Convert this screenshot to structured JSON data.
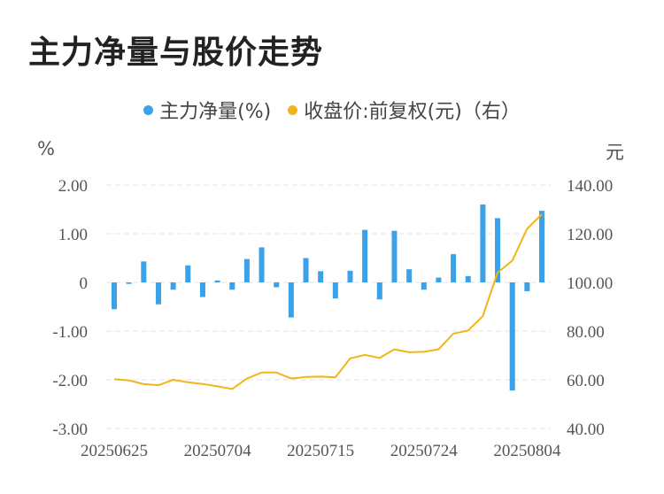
{
  "title": "主力净量与股价走势",
  "legend": {
    "series1": "主力净量(%)",
    "series2": "收盘价:前复权(元)（右）"
  },
  "units": {
    "left": "%",
    "right": "元"
  },
  "colors": {
    "bar": "#3BA1E8",
    "line": "#F2B418",
    "grid": "#E3E3E3"
  },
  "chart_data": {
    "type": "bar+line",
    "x_tick_labels": [
      "20250625",
      "20250704",
      "20250715",
      "20250724",
      "20250804"
    ],
    "left_axis": {
      "ticks": [
        "2.00",
        "1.00",
        "0",
        "-1.00",
        "-2.00",
        "-3.00"
      ],
      "min": -3,
      "max": 2
    },
    "right_axis": {
      "ticks": [
        "140.00",
        "120.00",
        "100.00",
        "80.00",
        "60.00",
        "40.00"
      ],
      "min": 40,
      "max": 140
    },
    "series": [
      {
        "name": "主力净量(%)",
        "type": "bar",
        "values": [
          -0.55,
          -0.03,
          0.43,
          -0.45,
          -0.15,
          0.35,
          -0.3,
          0.04,
          -0.15,
          0.48,
          0.72,
          -0.1,
          -0.72,
          0.5,
          0.23,
          -0.33,
          0.24,
          1.08,
          -0.35,
          1.06,
          0.27,
          -0.15,
          0.1,
          0.58,
          0.13,
          1.6,
          1.32,
          -2.22,
          -0.18,
          1.47
        ]
      },
      {
        "name": "收盘价:前复权(元)（右）",
        "type": "line",
        "values": [
          60.2,
          59.8,
          58.2,
          57.8,
          60.0,
          59.0,
          58.3,
          57.3,
          56.2,
          60.5,
          63.0,
          63.0,
          60.5,
          61.2,
          61.3,
          61.0,
          68.8,
          70.2,
          69.0,
          72.5,
          71.3,
          71.5,
          72.5,
          79.0,
          80.2,
          86.2,
          104.0,
          109.0,
          122.0,
          128.0
        ]
      }
    ]
  }
}
